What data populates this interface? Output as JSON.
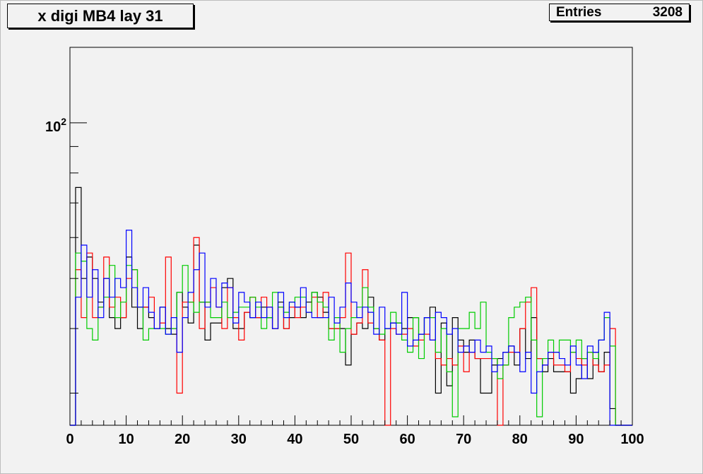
{
  "title": "x digi MB4 lay 31",
  "stats": {
    "label": "Entries",
    "value": "3208"
  },
  "chart_data": {
    "type": "histogram-step",
    "title": "x digi MB4 lay 31",
    "xlabel": "",
    "ylabel": "",
    "xlim": [
      0,
      100
    ],
    "ylim": [
      26,
      140
    ],
    "log_y": true,
    "grid": false,
    "bins": {
      "x_min": 0,
      "x_max": 100,
      "bin_width": 1
    },
    "x_ticks": [
      0,
      10,
      20,
      30,
      40,
      50,
      60,
      70,
      80,
      90,
      100
    ],
    "y_tick_labels": [
      {
        "value": 100,
        "base": "10",
        "exp": "2"
      }
    ],
    "series": [
      {
        "color": "#000000",
        "values": [
          0,
          75,
          50,
          55,
          50,
          45,
          50,
          42,
          40,
          42,
          55,
          44,
          40,
          44,
          42,
          40,
          44,
          40,
          39,
          47,
          44,
          41,
          58,
          45,
          38,
          41,
          41,
          48,
          50,
          40,
          40,
          43,
          42,
          42,
          44,
          42,
          40,
          45,
          40,
          42,
          44,
          42,
          45,
          47,
          46,
          43,
          40,
          40,
          40,
          34,
          39,
          41,
          40,
          46,
          40,
          38,
          40,
          41,
          41,
          40,
          42,
          42,
          39,
          42,
          44,
          30,
          41,
          31,
          42,
          38,
          36,
          38,
          35,
          30,
          30,
          34,
          35,
          36,
          37,
          34,
          40,
          35,
          42,
          35,
          33,
          35,
          33,
          33,
          33,
          30,
          32,
          35,
          32,
          36,
          33,
          36,
          28,
          0,
          0,
          0
        ]
      },
      {
        "color": "#ff0000",
        "values": [
          0,
          52,
          42,
          56,
          42,
          44,
          55,
          44,
          46,
          42,
          50,
          52,
          44,
          44,
          46,
          40,
          41,
          55,
          40,
          30,
          45,
          45,
          60,
          40,
          45,
          48,
          44,
          40,
          48,
          42,
          38,
          43,
          46,
          42,
          46,
          44,
          40,
          44,
          40,
          44,
          42,
          44,
          43,
          46,
          42,
          47,
          40,
          40,
          42,
          56,
          39,
          41,
          52,
          41,
          40,
          38,
          25,
          40,
          39,
          39,
          40,
          37,
          38,
          39,
          38,
          35,
          34,
          35,
          34,
          37,
          33,
          36,
          35,
          35,
          35,
          35,
          24,
          34,
          36,
          36,
          40,
          45,
          48,
          35,
          34,
          36,
          34,
          34,
          33,
          36,
          35,
          34,
          36,
          34,
          33,
          34,
          40,
          0,
          0,
          0
        ]
      },
      {
        "color": "#00cc00",
        "values": [
          0,
          56,
          54,
          40,
          38,
          44,
          46,
          53,
          42,
          45,
          53,
          52,
          44,
          38,
          40,
          40,
          40,
          39,
          40,
          47,
          53,
          45,
          43,
          45,
          45,
          42,
          42,
          45,
          42,
          43,
          44,
          44,
          46,
          44,
          40,
          42,
          47,
          44,
          43,
          45,
          46,
          46,
          43,
          47,
          45,
          44,
          38,
          42,
          36,
          40,
          42,
          44,
          48,
          44,
          40,
          39,
          40,
          43,
          41,
          38,
          36,
          42,
          35,
          42,
          42,
          36,
          40,
          33,
          27,
          40,
          40,
          43,
          40,
          45,
          36,
          35,
          32,
          34,
          42,
          44,
          45,
          46,
          38,
          27,
          35,
          38,
          36,
          38,
          38,
          36,
          38,
          35,
          36,
          35,
          38,
          42,
          37,
          0,
          0,
          0
        ]
      },
      {
        "color": "#0000ff",
        "values": [
          0,
          46,
          58,
          46,
          52,
          42,
          50,
          46,
          50,
          48,
          62,
          48,
          44,
          48,
          43,
          40,
          44,
          39,
          42,
          36,
          42,
          47,
          52,
          56,
          44,
          50,
          44,
          49,
          48,
          41,
          47,
          45,
          42,
          45,
          42,
          44,
          40,
          47,
          42,
          45,
          44,
          48,
          43,
          42,
          42,
          42,
          46,
          41,
          44,
          49,
          45,
          42,
          44,
          43,
          39,
          44,
          40,
          41,
          39,
          47,
          37,
          38,
          39,
          42,
          38,
          43,
          42,
          39,
          40,
          36,
          37,
          36,
          38,
          36,
          37,
          33,
          34,
          36,
          37,
          36,
          33,
          36,
          30,
          33,
          34,
          36,
          36,
          35,
          34,
          37,
          34,
          32,
          37,
          36,
          38,
          43,
          0,
          0,
          0,
          0
        ]
      }
    ]
  }
}
